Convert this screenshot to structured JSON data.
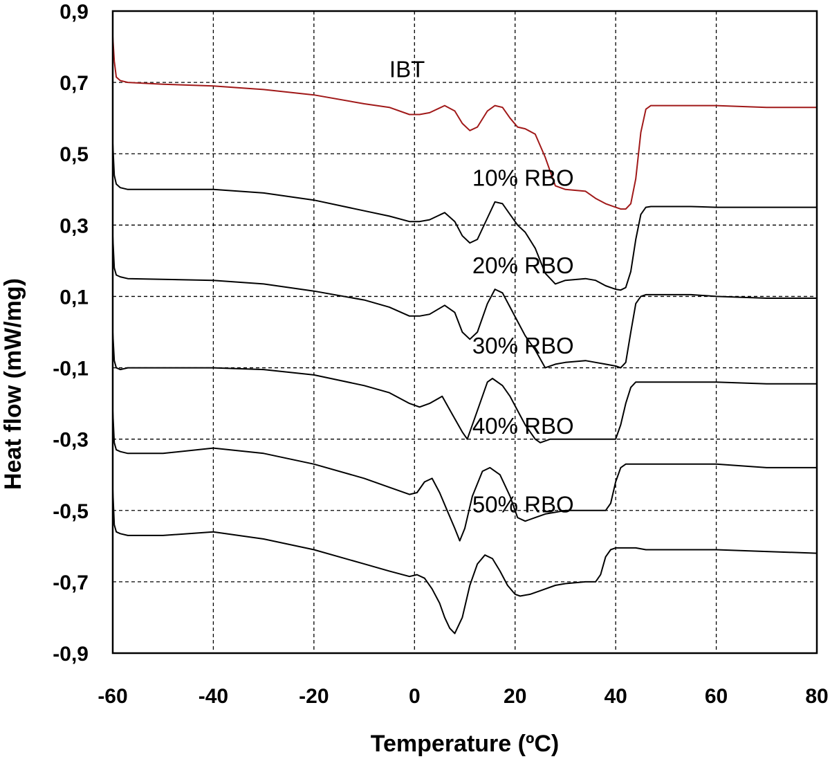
{
  "chart_data": {
    "type": "line",
    "title": "",
    "xlabel": "Temperature (ºC)",
    "ylabel": "Heat flow (mW/mg)",
    "xlim": [
      -60,
      80
    ],
    "ylim": [
      -0.9,
      0.9
    ],
    "x_ticks": [
      -60,
      -40,
      -20,
      0,
      20,
      40,
      60,
      80
    ],
    "x_tick_labels": [
      "-60",
      "-40",
      "-20",
      "0",
      "20",
      "40",
      "60",
      "80"
    ],
    "y_ticks": [
      0.9,
      0.7,
      0.5,
      0.3,
      0.1,
      -0.1,
      -0.3,
      -0.5,
      -0.7,
      -0.9
    ],
    "y_tick_labels": [
      "0,9",
      "0,7",
      "0,5",
      "0,3",
      "0,1",
      "-0,1",
      "-0,3",
      "-0,5",
      "-0,7",
      "-0,9"
    ],
    "grid": true,
    "series": [
      {
        "name": "IBT",
        "color": "#a01818",
        "label_at": [
          -5.0,
          0.715
        ],
        "x": [
          -60,
          -59.7,
          -59.3,
          -58.5,
          -57,
          -50,
          -40,
          -30,
          -20,
          -10,
          -5,
          -1,
          1,
          3,
          6,
          8,
          9.5,
          11,
          12.5,
          14.5,
          16,
          17.5,
          19,
          20.5,
          22,
          24,
          26,
          28,
          30,
          34,
          36,
          38,
          40,
          41,
          42,
          43,
          44,
          45,
          46,
          47,
          48,
          55,
          60,
          70,
          80
        ],
        "y": [
          0.83,
          0.76,
          0.715,
          0.705,
          0.7,
          0.695,
          0.69,
          0.68,
          0.665,
          0.64,
          0.63,
          0.61,
          0.61,
          0.615,
          0.635,
          0.62,
          0.585,
          0.565,
          0.575,
          0.62,
          0.635,
          0.63,
          0.6,
          0.575,
          0.57,
          0.555,
          0.49,
          0.41,
          0.4,
          0.395,
          0.375,
          0.36,
          0.35,
          0.345,
          0.345,
          0.36,
          0.43,
          0.56,
          0.625,
          0.635,
          0.635,
          0.635,
          0.635,
          0.63,
          0.63
        ]
      },
      {
        "name": "10% RBO",
        "color": "#000000",
        "label_at": [
          11.5,
          0.41
        ],
        "x": [
          -60,
          -59.7,
          -59.3,
          -58.5,
          -57,
          -50,
          -40,
          -30,
          -20,
          -10,
          -5,
          -1,
          1,
          3,
          6,
          8,
          9.5,
          11,
          12.5,
          14.5,
          16,
          17.5,
          19,
          20.5,
          22,
          24,
          26,
          28,
          30,
          34,
          36,
          38,
          40,
          41,
          42,
          43,
          44,
          45,
          46,
          47,
          48,
          55,
          60,
          70,
          80
        ],
        "y": [
          0.53,
          0.44,
          0.415,
          0.405,
          0.4,
          0.4,
          0.4,
          0.39,
          0.37,
          0.34,
          0.325,
          0.31,
          0.31,
          0.315,
          0.335,
          0.31,
          0.27,
          0.25,
          0.26,
          0.32,
          0.365,
          0.36,
          0.33,
          0.3,
          0.28,
          0.235,
          0.165,
          0.135,
          0.145,
          0.15,
          0.145,
          0.13,
          0.12,
          0.118,
          0.125,
          0.17,
          0.26,
          0.33,
          0.35,
          0.352,
          0.352,
          0.352,
          0.35,
          0.35,
          0.35
        ]
      },
      {
        "name": "20% RBO",
        "color": "#000000",
        "label_at": [
          11.5,
          0.165
        ],
        "x": [
          -60,
          -59.7,
          -59.3,
          -58.5,
          -57,
          -50,
          -40,
          -30,
          -20,
          -10,
          -5,
          -1,
          1,
          3,
          6,
          8,
          9.5,
          11,
          12.5,
          14.5,
          16,
          17.5,
          19,
          20.5,
          22,
          24,
          26,
          28,
          30,
          34,
          36,
          38,
          40,
          41,
          42,
          43,
          44,
          45,
          46,
          47,
          48,
          55,
          60,
          70,
          80
        ],
        "y": [
          0.27,
          0.18,
          0.16,
          0.155,
          0.15,
          0.148,
          0.145,
          0.135,
          0.115,
          0.09,
          0.07,
          0.045,
          0.045,
          0.05,
          0.075,
          0.055,
          0.0,
          -0.02,
          0.0,
          0.08,
          0.12,
          0.11,
          0.07,
          0.03,
          -0.01,
          -0.05,
          -0.1,
          -0.09,
          -0.085,
          -0.08,
          -0.085,
          -0.09,
          -0.095,
          -0.1,
          -0.085,
          0.0,
          0.08,
          0.1,
          0.105,
          0.105,
          0.105,
          0.105,
          0.1,
          0.095,
          0.095
        ]
      },
      {
        "name": "30% RBO",
        "color": "#000000",
        "label_at": [
          11.5,
          -0.06
        ],
        "x": [
          -60,
          -59.7,
          -59.3,
          -58.5,
          -57,
          -50,
          -40,
          -30,
          -20,
          -10,
          -5,
          -1,
          1,
          3,
          5.5,
          7.5,
          9.5,
          10.5,
          12.5,
          14.5,
          15.5,
          17.5,
          19,
          20.5,
          22,
          24,
          25,
          27,
          30,
          34,
          36,
          38,
          40,
          41,
          42,
          43,
          44,
          46,
          48,
          55,
          60,
          70,
          80
        ],
        "y": [
          0.0,
          -0.08,
          -0.1,
          -0.105,
          -0.1,
          -0.1,
          -0.1,
          -0.105,
          -0.12,
          -0.15,
          -0.17,
          -0.2,
          -0.21,
          -0.2,
          -0.18,
          -0.23,
          -0.28,
          -0.3,
          -0.22,
          -0.14,
          -0.13,
          -0.15,
          -0.18,
          -0.22,
          -0.26,
          -0.3,
          -0.31,
          -0.3,
          -0.3,
          -0.3,
          -0.3,
          -0.3,
          -0.3,
          -0.26,
          -0.2,
          -0.155,
          -0.14,
          -0.14,
          -0.14,
          -0.14,
          -0.14,
          -0.145,
          -0.145
        ]
      },
      {
        "name": "40% RBO",
        "color": "#000000",
        "label_at": [
          11.5,
          -0.285
        ],
        "x": [
          -60,
          -59.7,
          -59.3,
          -58.5,
          -57,
          -50,
          -40,
          -30,
          -20,
          -10,
          -5,
          -1,
          0.5,
          2,
          3.5,
          5,
          6.5,
          8,
          9,
          10,
          11.5,
          13.5,
          15,
          17,
          19,
          20.5,
          22,
          24,
          26,
          28,
          30,
          34,
          36,
          38,
          39,
          40,
          41,
          42,
          44,
          46,
          48,
          55,
          60,
          70,
          80
        ],
        "y": [
          -0.22,
          -0.31,
          -0.33,
          -0.335,
          -0.34,
          -0.34,
          -0.325,
          -0.34,
          -0.37,
          -0.41,
          -0.435,
          -0.455,
          -0.45,
          -0.42,
          -0.41,
          -0.45,
          -0.5,
          -0.55,
          -0.585,
          -0.55,
          -0.46,
          -0.39,
          -0.38,
          -0.4,
          -0.46,
          -0.52,
          -0.53,
          -0.52,
          -0.51,
          -0.505,
          -0.5,
          -0.5,
          -0.5,
          -0.5,
          -0.48,
          -0.42,
          -0.38,
          -0.37,
          -0.37,
          -0.37,
          -0.37,
          -0.37,
          -0.37,
          -0.38,
          -0.38
        ]
      },
      {
        "name": "50% RBO",
        "color": "#000000",
        "label_at": [
          11.5,
          -0.505
        ],
        "x": [
          -60,
          -59.7,
          -59.3,
          -58.5,
          -57,
          -50,
          -40,
          -30,
          -20,
          -10,
          -5,
          -1,
          0.5,
          2,
          3.5,
          5,
          6,
          7,
          8,
          9.5,
          11,
          12.5,
          14,
          15.5,
          17,
          18.5,
          20,
          21,
          23,
          25,
          28,
          30,
          34,
          36,
          37,
          38,
          39,
          40,
          42,
          44,
          46,
          48,
          55,
          60,
          70,
          80
        ],
        "y": [
          -0.44,
          -0.54,
          -0.56,
          -0.565,
          -0.57,
          -0.57,
          -0.56,
          -0.58,
          -0.61,
          -0.65,
          -0.67,
          -0.685,
          -0.68,
          -0.69,
          -0.72,
          -0.76,
          -0.8,
          -0.83,
          -0.845,
          -0.8,
          -0.71,
          -0.65,
          -0.625,
          -0.635,
          -0.67,
          -0.71,
          -0.735,
          -0.74,
          -0.735,
          -0.725,
          -0.71,
          -0.705,
          -0.7,
          -0.7,
          -0.68,
          -0.63,
          -0.61,
          -0.605,
          -0.605,
          -0.605,
          -0.61,
          -0.61,
          -0.61,
          -0.61,
          -0.615,
          -0.62
        ]
      }
    ]
  }
}
